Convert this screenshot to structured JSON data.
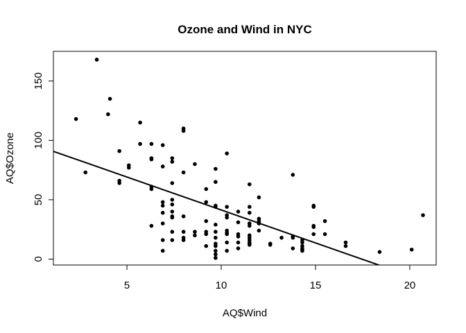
{
  "chart_data": {
    "type": "scatter",
    "title": "Ozone and Wind in NYC",
    "xlabel": "AQ$Wind",
    "ylabel": "AQ$Ozone",
    "xlim": [
      1.1,
      21.4
    ],
    "ylim": [
      -5,
      175
    ],
    "x_ticks": [
      5,
      10,
      15,
      20
    ],
    "y_ticks": [
      0,
      50,
      100,
      150
    ],
    "grid": false,
    "point_color": "#000000",
    "line_color": "#000000",
    "points": [
      {
        "x": 2.3,
        "y": 118
      },
      {
        "x": 2.8,
        "y": 73
      },
      {
        "x": 3.4,
        "y": 168
      },
      {
        "x": 4.0,
        "y": 122
      },
      {
        "x": 4.1,
        "y": 135
      },
      {
        "x": 4.6,
        "y": 91
      },
      {
        "x": 4.6,
        "y": 66
      },
      {
        "x": 4.6,
        "y": 64
      },
      {
        "x": 5.1,
        "y": 79
      },
      {
        "x": 5.1,
        "y": 77
      },
      {
        "x": 5.7,
        "y": 115
      },
      {
        "x": 5.7,
        "y": 97
      },
      {
        "x": 6.3,
        "y": 97
      },
      {
        "x": 6.3,
        "y": 85
      },
      {
        "x": 6.3,
        "y": 84
      },
      {
        "x": 6.3,
        "y": 61
      },
      {
        "x": 6.3,
        "y": 59
      },
      {
        "x": 6.3,
        "y": 28
      },
      {
        "x": 6.9,
        "y": 96
      },
      {
        "x": 6.9,
        "y": 78
      },
      {
        "x": 6.9,
        "y": 48
      },
      {
        "x": 6.9,
        "y": 45
      },
      {
        "x": 6.9,
        "y": 39
      },
      {
        "x": 6.9,
        "y": 30
      },
      {
        "x": 6.9,
        "y": 16
      },
      {
        "x": 6.9,
        "y": 7
      },
      {
        "x": 7.4,
        "y": 85
      },
      {
        "x": 7.4,
        "y": 82
      },
      {
        "x": 7.4,
        "y": 64
      },
      {
        "x": 7.4,
        "y": 50
      },
      {
        "x": 7.4,
        "y": 46
      },
      {
        "x": 7.4,
        "y": 40
      },
      {
        "x": 7.4,
        "y": 36
      },
      {
        "x": 7.4,
        "y": 35
      },
      {
        "x": 7.4,
        "y": 23
      },
      {
        "x": 7.4,
        "y": 16
      },
      {
        "x": 8.0,
        "y": 110
      },
      {
        "x": 8.0,
        "y": 108
      },
      {
        "x": 8.0,
        "y": 73
      },
      {
        "x": 8.0,
        "y": 36
      },
      {
        "x": 8.0,
        "y": 23
      },
      {
        "x": 8.0,
        "y": 18
      },
      {
        "x": 8.0,
        "y": 16
      },
      {
        "x": 8.6,
        "y": 80
      },
      {
        "x": 8.6,
        "y": 23
      },
      {
        "x": 8.6,
        "y": 20
      },
      {
        "x": 9.2,
        "y": 59
      },
      {
        "x": 9.2,
        "y": 48
      },
      {
        "x": 9.2,
        "y": 32
      },
      {
        "x": 9.2,
        "y": 23
      },
      {
        "x": 9.2,
        "y": 21
      },
      {
        "x": 9.2,
        "y": 11
      },
      {
        "x": 9.7,
        "y": 76
      },
      {
        "x": 9.7,
        "y": 65
      },
      {
        "x": 9.7,
        "y": 45
      },
      {
        "x": 9.7,
        "y": 44
      },
      {
        "x": 9.7,
        "y": 29
      },
      {
        "x": 9.7,
        "y": 23
      },
      {
        "x": 9.7,
        "y": 18
      },
      {
        "x": 9.7,
        "y": 13
      },
      {
        "x": 9.7,
        "y": 11
      },
      {
        "x": 9.7,
        "y": 7
      },
      {
        "x": 9.7,
        "y": 4
      },
      {
        "x": 9.7,
        "y": 1
      },
      {
        "x": 10.3,
        "y": 89
      },
      {
        "x": 10.3,
        "y": 44
      },
      {
        "x": 10.3,
        "y": 37
      },
      {
        "x": 10.3,
        "y": 35
      },
      {
        "x": 10.3,
        "y": 24
      },
      {
        "x": 10.3,
        "y": 22
      },
      {
        "x": 10.3,
        "y": 21
      },
      {
        "x": 10.3,
        "y": 14
      },
      {
        "x": 10.3,
        "y": 7
      },
      {
        "x": 10.9,
        "y": 40
      },
      {
        "x": 10.9,
        "y": 31
      },
      {
        "x": 10.9,
        "y": 21
      },
      {
        "x": 10.9,
        "y": 19
      },
      {
        "x": 10.9,
        "y": 14
      },
      {
        "x": 10.9,
        "y": 9
      },
      {
        "x": 11.5,
        "y": 63
      },
      {
        "x": 11.5,
        "y": 44
      },
      {
        "x": 11.5,
        "y": 39
      },
      {
        "x": 11.5,
        "y": 30
      },
      {
        "x": 11.5,
        "y": 28
      },
      {
        "x": 11.5,
        "y": 20
      },
      {
        "x": 11.5,
        "y": 18
      },
      {
        "x": 11.5,
        "y": 16
      },
      {
        "x": 11.5,
        "y": 14
      },
      {
        "x": 11.5,
        "y": 13
      },
      {
        "x": 11.5,
        "y": 12
      },
      {
        "x": 12.0,
        "y": 52
      },
      {
        "x": 12.0,
        "y": 34
      },
      {
        "x": 12.0,
        "y": 32
      },
      {
        "x": 12.0,
        "y": 30
      },
      {
        "x": 12.0,
        "y": 24
      },
      {
        "x": 12.6,
        "y": 13
      },
      {
        "x": 12.6,
        "y": 12
      },
      {
        "x": 13.2,
        "y": 18
      },
      {
        "x": 13.8,
        "y": 71
      },
      {
        "x": 13.8,
        "y": 19
      },
      {
        "x": 13.8,
        "y": 18
      },
      {
        "x": 13.8,
        "y": 9
      },
      {
        "x": 14.3,
        "y": 16
      },
      {
        "x": 14.3,
        "y": 14
      },
      {
        "x": 14.3,
        "y": 11
      },
      {
        "x": 14.3,
        "y": 9
      },
      {
        "x": 14.3,
        "y": 8
      },
      {
        "x": 14.3,
        "y": 7
      },
      {
        "x": 14.9,
        "y": 45
      },
      {
        "x": 14.9,
        "y": 44
      },
      {
        "x": 14.9,
        "y": 28
      },
      {
        "x": 14.9,
        "y": 27
      },
      {
        "x": 14.9,
        "y": 21
      },
      {
        "x": 15.5,
        "y": 32
      },
      {
        "x": 15.5,
        "y": 21
      },
      {
        "x": 16.6,
        "y": 14
      },
      {
        "x": 16.6,
        "y": 11
      },
      {
        "x": 18.4,
        "y": 6
      },
      {
        "x": 20.1,
        "y": 8
      },
      {
        "x": 20.7,
        "y": 37
      }
    ],
    "regression_line": {
      "intercept": 96.87,
      "slope": -5.55
    }
  }
}
